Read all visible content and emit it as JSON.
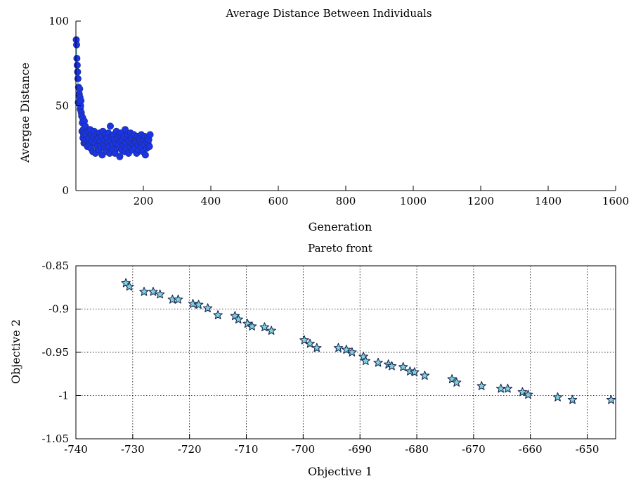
{
  "chart_data": [
    {
      "type": "scatter",
      "title": "Average Distance Between Individuals",
      "xlabel": "Generation",
      "ylabel": "Avergae Distance",
      "xlim": [
        0,
        1600
      ],
      "ylim": [
        0,
        100
      ],
      "xticks": [
        200,
        400,
        600,
        800,
        1000,
        1200,
        1400,
        1600
      ],
      "yticks": [
        0,
        50,
        100
      ],
      "grid": false,
      "marker": "circle",
      "colors": {
        "fill": "#1a35e6",
        "edge": "#1f2f8c",
        "line": "#6ecfd8"
      },
      "x": [
        1,
        2,
        3,
        4,
        5,
        6,
        7,
        8,
        9,
        10,
        11,
        12,
        13,
        14,
        15,
        16,
        17,
        18,
        19,
        20,
        21,
        22,
        23,
        24,
        25,
        26,
        27,
        28,
        29,
        30,
        32,
        34,
        36,
        38,
        40,
        42,
        44,
        46,
        48,
        50,
        52,
        54,
        56,
        58,
        60,
        62,
        64,
        66,
        68,
        70,
        72,
        74,
        76,
        78,
        80,
        82,
        84,
        86,
        88,
        90,
        92,
        94,
        96,
        98,
        100,
        102,
        104,
        106,
        108,
        110,
        112,
        114,
        116,
        118,
        120,
        122,
        124,
        126,
        128,
        130,
        132,
        134,
        136,
        138,
        140,
        142,
        144,
        146,
        148,
        150,
        152,
        154,
        156,
        158,
        160,
        162,
        164,
        166,
        168,
        170,
        172,
        174,
        176,
        178,
        180,
        182,
        184,
        186,
        188,
        190,
        192,
        194,
        196,
        198,
        200,
        202,
        204,
        206,
        208,
        210,
        212,
        214,
        216,
        218,
        220
      ],
      "y": [
        89,
        86,
        78,
        74,
        70,
        66,
        52,
        61,
        56,
        57,
        60,
        55,
        48,
        50,
        53,
        46,
        44,
        35,
        40,
        43,
        31,
        36,
        33,
        28,
        41,
        30,
        34,
        38,
        28,
        33,
        30,
        26,
        35,
        31,
        27,
        36,
        25,
        33,
        29,
        23,
        32,
        35,
        28,
        22,
        30,
        33,
        26,
        31,
        24,
        34,
        29,
        26,
        32,
        21,
        35,
        28,
        30,
        25,
        33,
        23,
        31,
        28,
        34,
        26,
        22,
        38,
        29,
        32,
        27,
        24,
        33,
        30,
        22,
        28,
        35,
        25,
        31,
        27,
        33,
        20,
        29,
        34,
        24,
        30,
        27,
        32,
        23,
        36,
        28,
        25,
        31,
        33,
        22,
        29,
        26,
        34,
        28,
        31,
        24,
        27,
        33,
        25,
        30,
        28,
        22,
        32,
        27,
        24,
        31,
        29,
        26,
        33,
        28,
        23,
        30,
        27,
        32,
        21,
        29,
        25,
        31,
        28,
        30,
        26,
        33
      ]
    },
    {
      "type": "scatter",
      "title": "Pareto front",
      "xlabel": "Objective 1",
      "ylabel": "Objective 2",
      "xlim": [
        -740,
        -645
      ],
      "ylim": [
        -1.05,
        -0.85
      ],
      "xticks": [
        -740,
        -730,
        -720,
        -710,
        -700,
        -690,
        -680,
        -670,
        -660,
        -650
      ],
      "yticks": [
        -1.05,
        -1,
        -0.95,
        -0.9,
        -0.85
      ],
      "grid": true,
      "marker": "star",
      "colors": {
        "fill": "#7fd3e0",
        "edge": "#1c2a50"
      },
      "x": [
        -731.2,
        -730.6,
        -728.0,
        -726.4,
        -725.2,
        -723.0,
        -722.0,
        -719.4,
        -718.4,
        -716.8,
        -715.0,
        -712.0,
        -711.4,
        -709.8,
        -709.0,
        -706.8,
        -705.6,
        -699.8,
        -698.8,
        -697.6,
        -693.8,
        -692.4,
        -691.4,
        -689.4,
        -689.0,
        -686.8,
        -685.0,
        -684.4,
        -682.4,
        -681.2,
        -680.4,
        -678.6,
        -673.8,
        -673.0,
        -668.6,
        -665.2,
        -664.0,
        -661.4,
        -660.4,
        -655.2,
        -652.6,
        -645.8
      ],
      "y": [
        -0.87,
        -0.874,
        -0.88,
        -0.88,
        -0.883,
        -0.889,
        -0.889,
        -0.894,
        -0.895,
        -0.899,
        -0.907,
        -0.908,
        -0.912,
        -0.917,
        -0.92,
        -0.921,
        -0.925,
        -0.936,
        -0.94,
        -0.945,
        -0.945,
        -0.947,
        -0.95,
        -0.955,
        -0.96,
        -0.962,
        -0.964,
        -0.966,
        -0.967,
        -0.972,
        -0.973,
        -0.977,
        -0.981,
        -0.985,
        -0.989,
        -0.992,
        -0.992,
        -0.996,
        -0.999,
        -1.002,
        -1.005,
        -1.005
      ]
    }
  ]
}
